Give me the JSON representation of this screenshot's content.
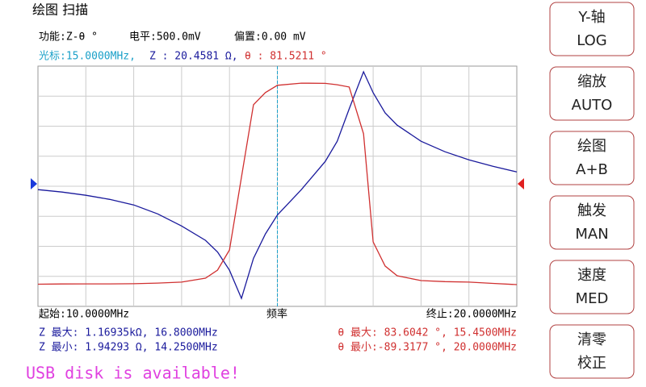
{
  "header": {
    "title": "绘图 扫描",
    "function": "功能:Z-θ °",
    "level": "电平:500.0mV",
    "bias": "偏置:0.00 mV"
  },
  "cursor": {
    "freq": "光标:15.0000MHz,",
    "z": "Z : 20.4581 Ω,",
    "theta": "θ : 81.5211 °"
  },
  "chart_data": {
    "type": "line",
    "x": [
      10,
      10.5,
      11,
      11.5,
      12,
      12.5,
      13,
      13.5,
      13.75,
      14,
      14.25,
      14.5,
      14.75,
      15,
      15.5,
      16,
      16.25,
      16.5,
      16.8,
      17,
      17.25,
      17.5,
      18,
      18.5,
      19,
      19.5,
      20
    ],
    "series": [
      {
        "name": "Z",
        "color": "#1a1a9c",
        "values": [
          41.9,
          39.1,
          35.7,
          31.8,
          27.2,
          21.1,
          15.0,
          10.0,
          7.2,
          4.3,
          1.94293,
          6.0,
          12.0,
          20.4581,
          41.9,
          93,
          164,
          409,
          1169.35,
          646,
          366,
          259,
          164,
          122,
          97,
          81,
          69
        ]
      },
      {
        "name": "θ",
        "color": "#d03030",
        "axis": "y2",
        "values": [
          -89.0,
          -88.8,
          -88.7,
          -88.7,
          -88.6,
          -88.0,
          -87.2,
          -83.8,
          -76.9,
          -59.6,
          2.7,
          64.9,
          75.3,
          81.5211,
          83.4,
          83.2,
          82.0,
          80.1,
          40.0,
          -52.7,
          -73.4,
          -81.7,
          -85.9,
          -86.8,
          -87.2,
          -88.3,
          -89.3177
        ]
      }
    ],
    "xlim": [
      10,
      20
    ],
    "ylim": [
      1.55,
      1370
    ],
    "ylog": true,
    "y2lim": [
      -108,
      98
    ],
    "cursor_x": 15,
    "grid": true,
    "start_label": "起始:10.0000MHz",
    "x_label": "频率",
    "stop_label": "终止:20.0000MHz"
  },
  "stats": {
    "z_max": "Z 最大: 1.16935kΩ, 16.8000MHz",
    "z_min": "Z 最小: 1.94293 Ω, 14.2500MHz",
    "theta_max": "θ 最大: 83.6042 °, 15.4500MHz",
    "theta_min": "θ 最小:-89.3177 °, 20.0000MHz"
  },
  "message": "USB disk is available!",
  "buttons": [
    {
      "top": "Y-轴",
      "bottom": "LOG"
    },
    {
      "top": "缩放",
      "bottom": "AUTO"
    },
    {
      "top": "绘图",
      "bottom": "A+B"
    },
    {
      "top": "触发",
      "bottom": "MAN"
    },
    {
      "top": "速度",
      "bottom": "MED"
    },
    {
      "top": "清零",
      "bottom": "校正"
    }
  ]
}
